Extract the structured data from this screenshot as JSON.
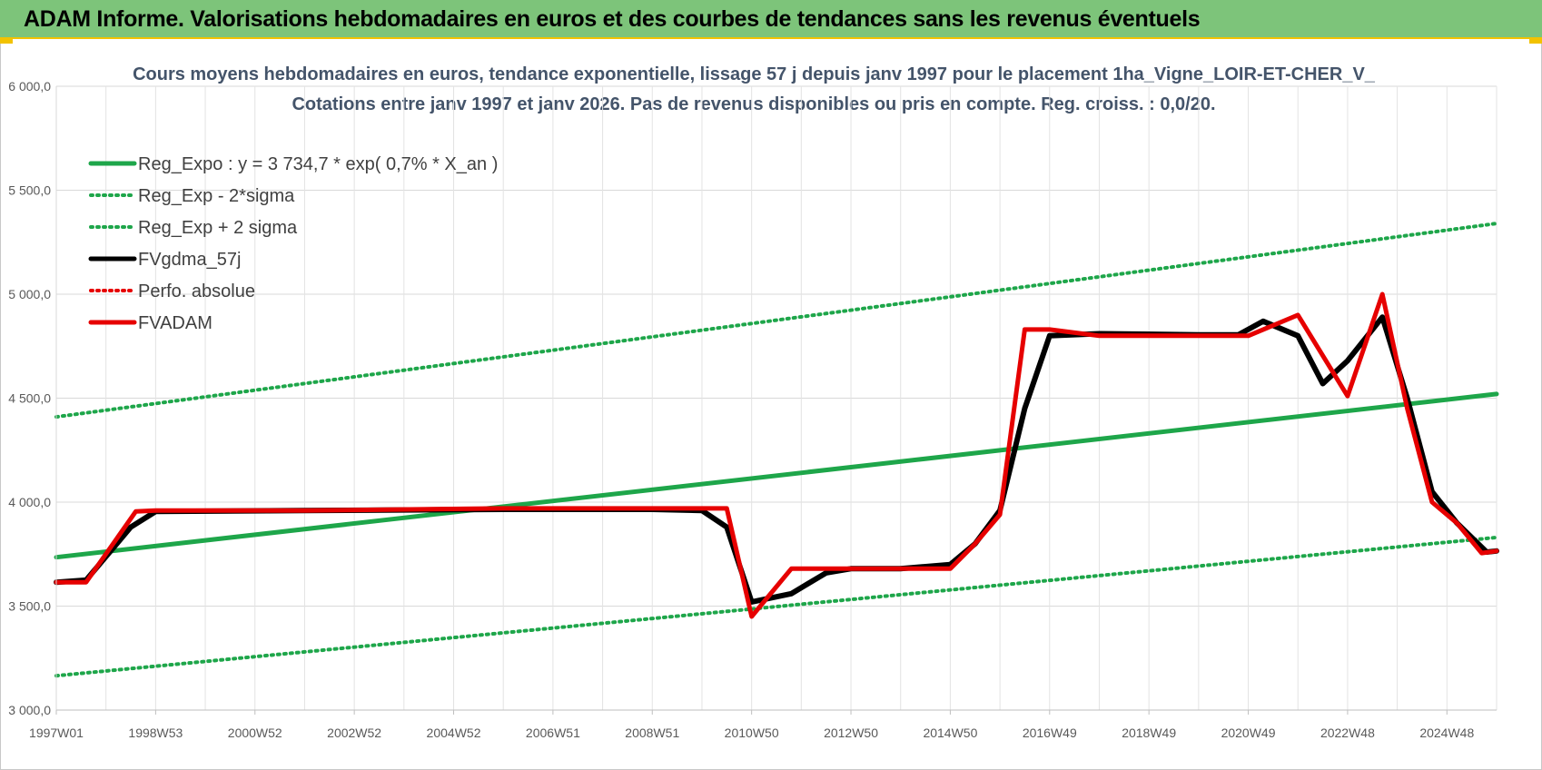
{
  "banner": {
    "title": "ADAM Informe. Valorisations hebdomadaires en euros et des courbes de tendances sans les revenus éventuels",
    "background": "#7dc47a",
    "accent": "#f2c200"
  },
  "chart_data": {
    "type": "line",
    "title": "Cours moyens hebdomadaires en euros, tendance exponentielle, lissage 57 j depuis janv 1997  pour le placement 1ha_Vigne_LOIR-ET-CHER_V_",
    "subtitle": "Cotations entre janv 1997 et janv 2026. Pas de revenus disponibles ou pris  en compte. Reg. croiss. : 0,0/20.",
    "x_tick_labels": [
      "1997W01",
      "1998W53",
      "2000W52",
      "2002W52",
      "2004W52",
      "2006W51",
      "2008W51",
      "2010W50",
      "2012W50",
      "2014W50",
      "2016W49",
      "2018W49",
      "2020W49",
      "2022W48",
      "2024W48"
    ],
    "x_tick_years": [
      1997.0,
      1999.0,
      2001.0,
      2003.0,
      2005.0,
      2007.0,
      2009.0,
      2011.0,
      2013.0,
      2015.0,
      2017.0,
      2019.0,
      2021.0,
      2023.0,
      2025.0
    ],
    "x_range": [
      1997.0,
      2026.0
    ],
    "y_range": [
      3000,
      6000
    ],
    "y_ticks": [
      3000,
      3500,
      4000,
      4500,
      5000,
      5500,
      6000
    ],
    "y_tick_labels": [
      "3 000,0",
      "3 500,0",
      "4 000,0",
      "4 500,0",
      "5 000,0",
      "5 500,0",
      "6 000,0"
    ],
    "grid": true,
    "legend_position": "top-left",
    "series": [
      {
        "name": "Reg_Expo : y = 3 734,7 * exp( 0,7% *  X_an )",
        "color": "#1ea64a",
        "style": "solid",
        "x": [
          1997.0,
          2026.0
        ],
        "y": [
          3735,
          4520
        ]
      },
      {
        "name": "Reg_Exp - 2*sigma",
        "color": "#1ea64a",
        "style": "dotted",
        "x": [
          1997.0,
          2026.0
        ],
        "y": [
          3165,
          3830
        ]
      },
      {
        "name": "Reg_Exp + 2 sigma",
        "color": "#1ea64a",
        "style": "dotted",
        "x": [
          1997.0,
          2026.0
        ],
        "y": [
          4410,
          5340
        ]
      },
      {
        "name": "FVgdma_57j",
        "color": "#000000",
        "style": "solid",
        "x": [
          1997.0,
          1997.6,
          1998.5,
          1999.0,
          2002.0,
          2006.0,
          2009.0,
          2010.0,
          2010.5,
          2011.0,
          2011.8,
          2012.5,
          2013.0,
          2014.0,
          2015.0,
          2015.5,
          2016.0,
          2016.5,
          2017.0,
          2018.0,
          2020.0,
          2020.8,
          2021.3,
          2022.0,
          2022.5,
          2023.0,
          2023.7,
          2024.2,
          2024.7,
          2025.2,
          2025.8,
          2026.0
        ],
        "y": [
          3615,
          3625,
          3880,
          3955,
          3960,
          3965,
          3965,
          3960,
          3880,
          3520,
          3560,
          3660,
          3680,
          3680,
          3700,
          3800,
          3960,
          4450,
          4800,
          4810,
          4805,
          4805,
          4870,
          4800,
          4570,
          4680,
          4890,
          4500,
          4050,
          3900,
          3760,
          3765
        ]
      },
      {
        "name": "Perfo. absolue",
        "color": "#e60000",
        "style": "dotted",
        "x": [],
        "y": []
      },
      {
        "name": "FVADAM",
        "color": "#e60000",
        "style": "solid",
        "x": [
          1997.0,
          1997.6,
          1998.6,
          1999.0,
          2002.0,
          2006.0,
          2009.0,
          2010.0,
          2010.5,
          2011.0,
          2011.8,
          2012.5,
          2013.0,
          2014.0,
          2015.0,
          2015.5,
          2016.0,
          2016.5,
          2017.0,
          2018.0,
          2020.0,
          2021.0,
          2022.0,
          2023.0,
          2023.7,
          2024.2,
          2024.7,
          2025.2,
          2025.7,
          2026.0
        ],
        "y": [
          3615,
          3615,
          3955,
          3960,
          3960,
          3970,
          3970,
          3970,
          3970,
          3450,
          3680,
          3680,
          3680,
          3680,
          3680,
          3800,
          3940,
          4830,
          4830,
          4800,
          4800,
          4800,
          4900,
          4510,
          5000,
          4450,
          4000,
          3900,
          3755,
          3765
        ]
      }
    ]
  }
}
